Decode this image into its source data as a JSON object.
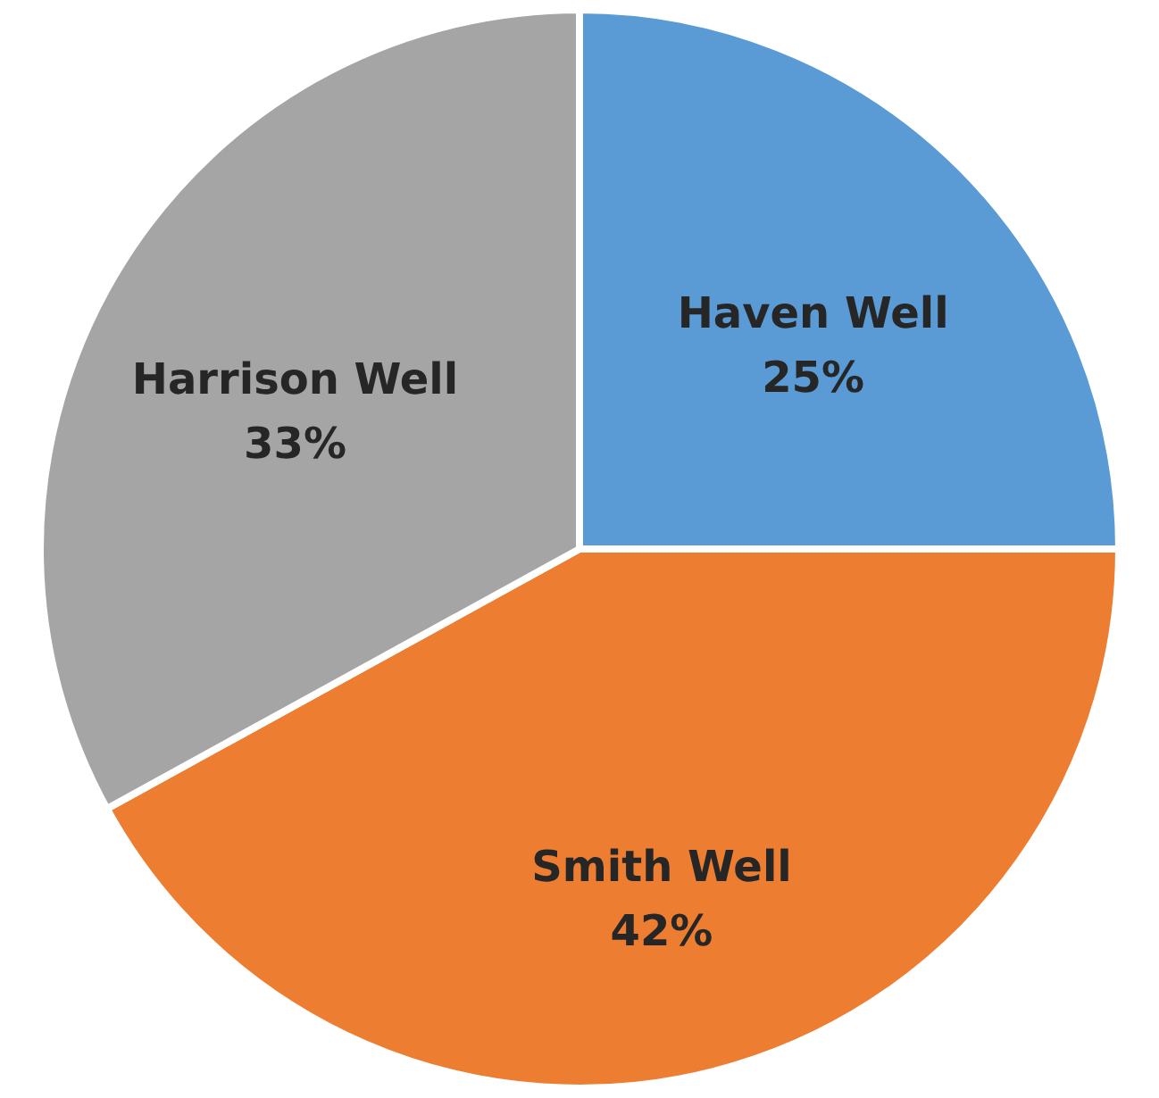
{
  "chart_data": {
    "type": "pie",
    "categories": [
      "Haven Well",
      "Smith Well",
      "Harrison Well"
    ],
    "values": [
      25,
      42,
      33
    ],
    "colors": [
      "#5b9bd5",
      "#ed7d31",
      "#a5a5a5"
    ],
    "value_labels": [
      "25%",
      "42%",
      "33%"
    ]
  }
}
